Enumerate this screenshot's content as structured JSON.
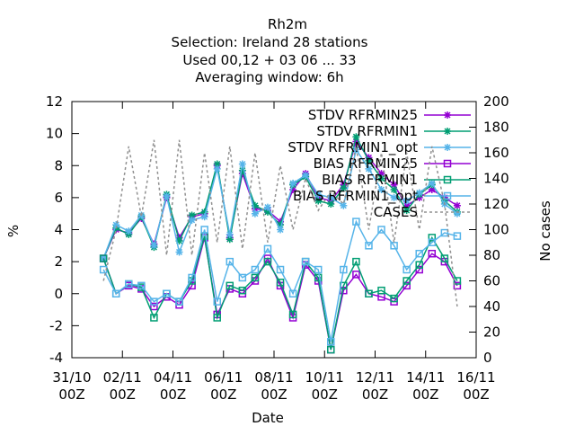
{
  "chart_data": {
    "type": "line",
    "title": "Rh2m",
    "subtitle": [
      "Selection: Ireland      28 stations",
      "Used  00,12  + 03 06 ... 33",
      "Averaging window:  6h"
    ],
    "xlabel": "Date",
    "ylabel": "%",
    "y2label": "No cases",
    "xlim": [
      0,
      16
    ],
    "xticks": [
      {
        "value": 0,
        "label": "31/10 00Z"
      },
      {
        "value": 2,
        "label": "02/11 00Z"
      },
      {
        "value": 4,
        "label": "04/11 00Z"
      },
      {
        "value": 6,
        "label": "06/11 00Z"
      },
      {
        "value": 8,
        "label": "08/11 00Z"
      },
      {
        "value": 10,
        "label": "10/11 00Z"
      },
      {
        "value": 12,
        "label": "12/11 00Z"
      },
      {
        "value": 14,
        "label": "14/11 00Z"
      },
      {
        "value": 16,
        "label": "16/11 00Z"
      }
    ],
    "ylim": [
      -4,
      12
    ],
    "yticks": [
      -4,
      -2,
      0,
      2,
      4,
      6,
      8,
      10,
      12
    ],
    "y2lim": [
      0,
      200
    ],
    "y2ticks": [
      0,
      20,
      40,
      60,
      80,
      100,
      120,
      140,
      160,
      180,
      200
    ],
    "x": [
      1.25,
      1.75,
      2.25,
      2.75,
      3.25,
      3.75,
      4.25,
      4.75,
      5.25,
      5.75,
      6.25,
      6.75,
      7.25,
      7.75,
      8.25,
      8.75,
      9.25,
      9.75,
      10.25,
      10.75,
      11.25,
      11.75,
      12.25,
      12.75,
      13.25,
      13.75,
      14.25,
      14.75,
      15.25
    ],
    "series": [
      {
        "name": "STDV RFRMIN25",
        "color": "#9400d3",
        "marker": "star",
        "values": [
          2.2,
          4.0,
          3.8,
          4.7,
          3.1,
          6.0,
          3.5,
          4.8,
          5.0,
          8.0,
          3.5,
          7.5,
          5.3,
          5.2,
          4.5,
          6.5,
          7.5,
          6.0,
          5.8,
          6.8,
          9.5,
          8.5,
          7.5,
          6.8,
          5.5,
          6.0,
          6.5,
          6.0,
          5.5
        ]
      },
      {
        "name": "STDV RFRMIN1",
        "color": "#009e73",
        "marker": "star",
        "values": [
          2.2,
          4.1,
          3.7,
          4.8,
          2.9,
          6.2,
          3.3,
          4.9,
          5.1,
          8.1,
          3.4,
          7.7,
          5.5,
          5.1,
          4.3,
          6.8,
          7.3,
          5.8,
          5.6,
          6.6,
          9.8,
          8.3,
          7.2,
          6.5,
          5.2,
          6.2,
          6.8,
          5.8,
          5.1
        ]
      },
      {
        "name": "STDV RFRMIN1_opt",
        "color": "#56b4e9",
        "marker": "star",
        "values": [
          2.2,
          4.3,
          3.9,
          4.9,
          3.0,
          6.1,
          2.6,
          4.6,
          4.8,
          7.8,
          3.7,
          8.1,
          5.0,
          5.4,
          4.0,
          6.9,
          7.4,
          6.2,
          6.0,
          5.5,
          9.0,
          7.8,
          6.5,
          6.0,
          5.8,
          6.3,
          6.9,
          5.6,
          5.0
        ]
      },
      {
        "name": "BIAS RFRMIN25",
        "color": "#9400d3",
        "marker": "square",
        "values": [
          2.2,
          0.0,
          0.5,
          0.3,
          -0.8,
          -0.2,
          -0.7,
          0.5,
          3.5,
          -1.3,
          0.3,
          0.0,
          0.8,
          2.2,
          0.5,
          -1.5,
          1.8,
          0.8,
          -3.5,
          0.2,
          1.2,
          0.0,
          -0.2,
          -0.5,
          0.5,
          1.5,
          2.5,
          2.0,
          0.5
        ]
      },
      {
        "name": "BIAS RFRMIN1",
        "color": "#009e73",
        "marker": "square",
        "values": [
          2.2,
          0.0,
          0.6,
          0.4,
          -1.5,
          0.0,
          -0.5,
          0.8,
          3.6,
          -1.5,
          0.5,
          0.2,
          1.0,
          2.0,
          0.7,
          -1.3,
          2.0,
          1.0,
          -3.5,
          0.5,
          2.0,
          0.0,
          0.2,
          -0.3,
          0.8,
          1.8,
          3.5,
          2.2,
          0.8
        ]
      },
      {
        "name": "BIAS RFRMIN1_opt",
        "color": "#56b4e9",
        "marker": "square",
        "values": [
          1.5,
          0.0,
          0.6,
          0.5,
          -0.5,
          0.0,
          -0.5,
          1.0,
          4.0,
          -0.5,
          2.0,
          1.0,
          1.5,
          2.8,
          1.5,
          0.0,
          2.0,
          1.5,
          -3.0,
          1.5,
          4.5,
          3.0,
          4.0,
          3.0,
          1.5,
          2.5,
          3.2,
          3.8,
          3.6
        ]
      },
      {
        "name": "CASES",
        "color": "#909090",
        "marker": "none",
        "dashed": true,
        "axis": "y2",
        "values": [
          60,
          100,
          165,
          110,
          170,
          80,
          170,
          80,
          160,
          90,
          165,
          85,
          160,
          90,
          150,
          100,
          140,
          115,
          130,
          120,
          165,
          100,
          160,
          90,
          160,
          100,
          165,
          120,
          40
        ]
      }
    ]
  }
}
